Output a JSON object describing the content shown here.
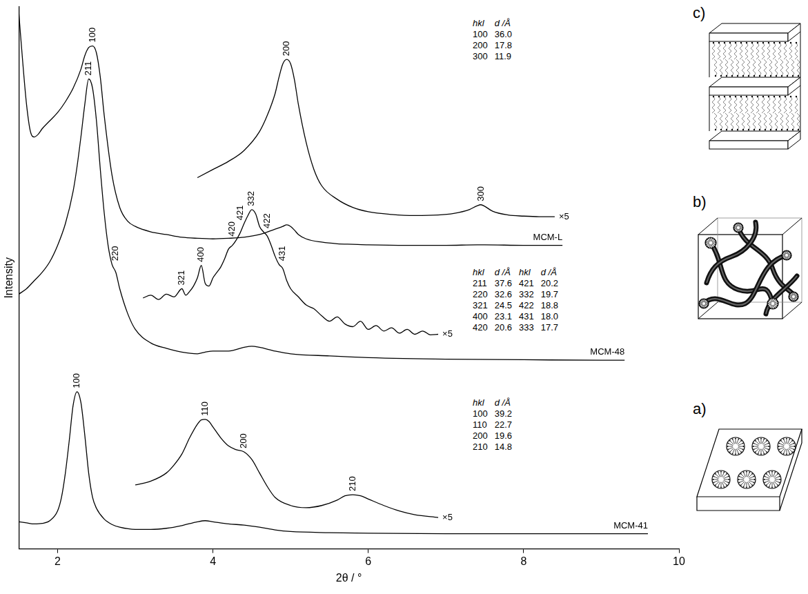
{
  "chart_data": {
    "type": "line",
    "xlabel": "2θ / °",
    "ylabel": "Intensity",
    "xlim": [
      1.5,
      10
    ],
    "xticks": [
      2,
      4,
      6,
      8,
      10
    ],
    "ylim": [
      0,
      100
    ],
    "grid": false,
    "tick_labels": "x",
    "table_columns": [
      "hkl",
      "d /Å"
    ],
    "series": [
      {
        "name": "MCM-L",
        "color": "#000000",
        "x": [
          1.5,
          1.55,
          1.6,
          1.65,
          1.7,
          1.75,
          1.8,
          1.9,
          2.0,
          2.1,
          2.2,
          2.3,
          2.35,
          2.4,
          2.45,
          2.5,
          2.55,
          2.6,
          2.7,
          2.8,
          2.9,
          3.0,
          3.2,
          3.4,
          3.6,
          3.8,
          4.0,
          4.2,
          4.4,
          4.6,
          4.8,
          4.9,
          4.95,
          5.0,
          5.05,
          5.1,
          5.2,
          5.4,
          5.6,
          5.8,
          6.0,
          6.5,
          7.0,
          7.4,
          7.5,
          8.0,
          8.5
        ],
        "values": [
          99,
          90,
          82,
          77,
          76,
          76.5,
          77.5,
          79,
          80.5,
          82.5,
          85,
          88.5,
          91,
          92.5,
          92.8,
          91.5,
          87,
          80,
          69,
          63,
          60.5,
          59.5,
          58.5,
          58,
          57.5,
          57.3,
          57.2,
          57.3,
          57.5,
          58,
          59,
          59.5,
          59.8,
          59.5,
          58.8,
          58,
          57.2,
          56.6,
          56.3,
          56.2,
          56.1,
          56,
          56,
          56.1,
          56.1,
          56,
          56
        ],
        "peaks": [
          {
            "label": "100",
            "x": 2.45
          }
        ],
        "magnified": {
          "label": "×5",
          "x": [
            3.8,
            4.0,
            4.2,
            4.4,
            4.6,
            4.7,
            4.8,
            4.85,
            4.9,
            4.95,
            5.0,
            5.05,
            5.1,
            5.2,
            5.3,
            5.4,
            5.6,
            5.8,
            6.0,
            6.3,
            6.6,
            6.9,
            7.1,
            7.3,
            7.4,
            7.45,
            7.5,
            7.6,
            7.8,
            8.0,
            8.2,
            8.4
          ],
          "values": [
            68.5,
            70,
            71.5,
            73.5,
            77,
            80,
            84,
            87,
            89.5,
            90.3,
            89.5,
            86.5,
            82,
            75,
            70,
            67,
            64.5,
            63,
            62.2,
            61.7,
            61.5,
            61.6,
            61.9,
            62.6,
            63.3,
            63.5,
            63.2,
            62.3,
            61.6,
            61.4,
            61.3,
            61.3
          ],
          "peaks": [
            {
              "label": "200",
              "x": 4.95
            },
            {
              "label": "300",
              "x": 7.45
            }
          ]
        },
        "reflections": [
          {
            "hkl": "100",
            "d": {
              "value": 36.0,
              "label": "36.0"
            }
          },
          {
            "hkl": "200",
            "d": 17.8
          },
          {
            "hkl": "300",
            "d": 11.9
          }
        ]
      },
      {
        "name": "MCM-48",
        "color": "#000000",
        "x": [
          1.5,
          1.6,
          1.7,
          1.8,
          1.9,
          2.0,
          2.1,
          2.2,
          2.25,
          2.3,
          2.35,
          2.4,
          2.45,
          2.5,
          2.55,
          2.6,
          2.65,
          2.7,
          2.75,
          2.8,
          2.9,
          3.0,
          3.2,
          3.4,
          3.6,
          3.8,
          3.9,
          4.0,
          4.2,
          4.4,
          4.5,
          4.6,
          4.8,
          5.0,
          5.5,
          6.0,
          7.0,
          8.0,
          9.0,
          9.3
        ],
        "values": [
          47,
          48,
          49.5,
          51,
          53,
          56,
          60,
          66,
          70.5,
          76,
          82,
          86.7,
          85,
          79,
          70,
          62,
          56,
          52.5,
          51,
          48,
          43.5,
          40.5,
          38,
          37,
          36.3,
          36,
          36.3,
          36.5,
          36.5,
          37.2,
          37.4,
          37.2,
          36.5,
          36,
          35.6,
          35.3,
          35,
          34.9,
          34.8,
          34.8
        ],
        "peaks": [
          {
            "label": "211",
            "x": 2.4
          },
          {
            "label": "220",
            "x": 2.75
          }
        ],
        "magnified": {
          "label": "×5",
          "x": [
            3.1,
            3.2,
            3.3,
            3.4,
            3.5,
            3.6,
            3.65,
            3.7,
            3.75,
            3.8,
            3.85,
            3.9,
            3.95,
            4.0,
            4.05,
            4.1,
            4.15,
            4.2,
            4.25,
            4.3,
            4.35,
            4.4,
            4.45,
            4.5,
            4.55,
            4.6,
            4.65,
            4.7,
            4.75,
            4.8,
            4.85,
            4.9,
            4.95,
            5.0,
            5.1,
            5.2,
            5.3,
            5.4,
            5.5,
            5.6,
            5.7,
            5.8,
            5.9,
            6.0,
            6.1,
            6.2,
            6.3,
            6.4,
            6.5,
            6.6,
            6.7,
            6.8,
            6.9
          ],
          "values": [
            46.3,
            46.8,
            46,
            47,
            46.5,
            48,
            46.8,
            47.5,
            48.5,
            50,
            52.3,
            49,
            48.5,
            50,
            51,
            52,
            53.5,
            55.3,
            56,
            57,
            58.3,
            60,
            61.5,
            62.6,
            61.8,
            59.5,
            58.5,
            57.7,
            56,
            54,
            52.5,
            51.7,
            49.5,
            48,
            46.5,
            45,
            44.3,
            43,
            42,
            42.8,
            41.5,
            41,
            42,
            40.5,
            41.2,
            40.2,
            40.8,
            39.8,
            40.5,
            39.6,
            40.2,
            39.5,
            39.6
          ],
          "peaks": [
            {
              "label": "321",
              "x": 3.6
            },
            {
              "label": "400",
              "x": 3.85
            },
            {
              "label": "420",
              "x": 4.25
            },
            {
              "label": "421",
              "x": 4.35
            },
            {
              "label": "332",
              "x": 4.5
            },
            {
              "label": "422",
              "x": 4.7
            },
            {
              "label": "431",
              "x": 4.9
            }
          ]
        },
        "reflections": [
          {
            "hkl": "211",
            "d": 37.6
          },
          {
            "hkl": "220",
            "d": 32.6
          },
          {
            "hkl": "321",
            "d": 24.5
          },
          {
            "hkl": "400",
            "d": 23.1
          },
          {
            "hkl": "420",
            "d": 20.6
          },
          {
            "hkl": "421",
            "d": 20.2
          },
          {
            "hkl": "332",
            "d": 19.7
          },
          {
            "hkl": "422",
            "d": 18.8
          },
          {
            "hkl": "431",
            "d": {
              "value": 18.0,
              "label": "18.0"
            }
          },
          {
            "hkl": "333",
            "d": 17.7
          }
        ]
      },
      {
        "name": "MCM-41",
        "color": "#000000",
        "x": [
          1.5,
          1.6,
          1.7,
          1.8,
          1.9,
          2.0,
          2.05,
          2.1,
          2.15,
          2.2,
          2.25,
          2.3,
          2.35,
          2.4,
          2.45,
          2.5,
          2.6,
          2.7,
          2.8,
          3.0,
          3.2,
          3.4,
          3.6,
          3.8,
          3.9,
          4.0,
          4.2,
          4.4,
          4.6,
          4.8,
          5.0,
          5.5,
          6.0,
          7.0,
          8.0,
          9.0,
          9.6
        ],
        "values": [
          5,
          4.8,
          4.6,
          4.7,
          5.2,
          7,
          9.5,
          14,
          20,
          26.5,
          29,
          27,
          21,
          14,
          9.5,
          7.5,
          5.5,
          4.5,
          4,
          3.6,
          3.6,
          3.8,
          4.3,
          5,
          5.2,
          5,
          4.6,
          4.4,
          4,
          3.5,
          3.2,
          3,
          2.9,
          2.8,
          2.8,
          2.8,
          2.8
        ],
        "peaks": [
          {
            "label": "100",
            "x": 2.25
          }
        ],
        "magnified": {
          "label": "×5",
          "x": [
            3.0,
            3.2,
            3.4,
            3.5,
            3.6,
            3.7,
            3.8,
            3.85,
            3.9,
            3.95,
            4.0,
            4.1,
            4.2,
            4.3,
            4.4,
            4.5,
            4.6,
            4.7,
            4.8,
            5.0,
            5.2,
            5.4,
            5.6,
            5.7,
            5.8,
            5.9,
            6.0,
            6.2,
            6.4,
            6.6,
            6.9
          ],
          "values": [
            11.8,
            12.5,
            14,
            15.5,
            17.5,
            20.5,
            23,
            23.8,
            23.9,
            23.5,
            22.5,
            20.5,
            19,
            18.3,
            17.9,
            16.5,
            14,
            11.5,
            9.5,
            8,
            7.6,
            8,
            9,
            9.8,
            10,
            9.8,
            9.2,
            8,
            7,
            6.3,
            5.8
          ],
          "peaks": [
            {
              "label": "110",
              "x": 3.9
            },
            {
              "label": "200",
              "x": 4.4
            },
            {
              "label": "210",
              "x": 5.8
            }
          ]
        },
        "reflections": [
          {
            "hkl": "100",
            "d": 39.2
          },
          {
            "hkl": "110",
            "d": 22.7
          },
          {
            "hkl": "200",
            "d": 19.6
          },
          {
            "hkl": "210",
            "d": 14.8
          }
        ]
      }
    ]
  },
  "diagrams": [
    {
      "label": "c)"
    },
    {
      "label": "b)"
    },
    {
      "label": "a)"
    }
  ]
}
